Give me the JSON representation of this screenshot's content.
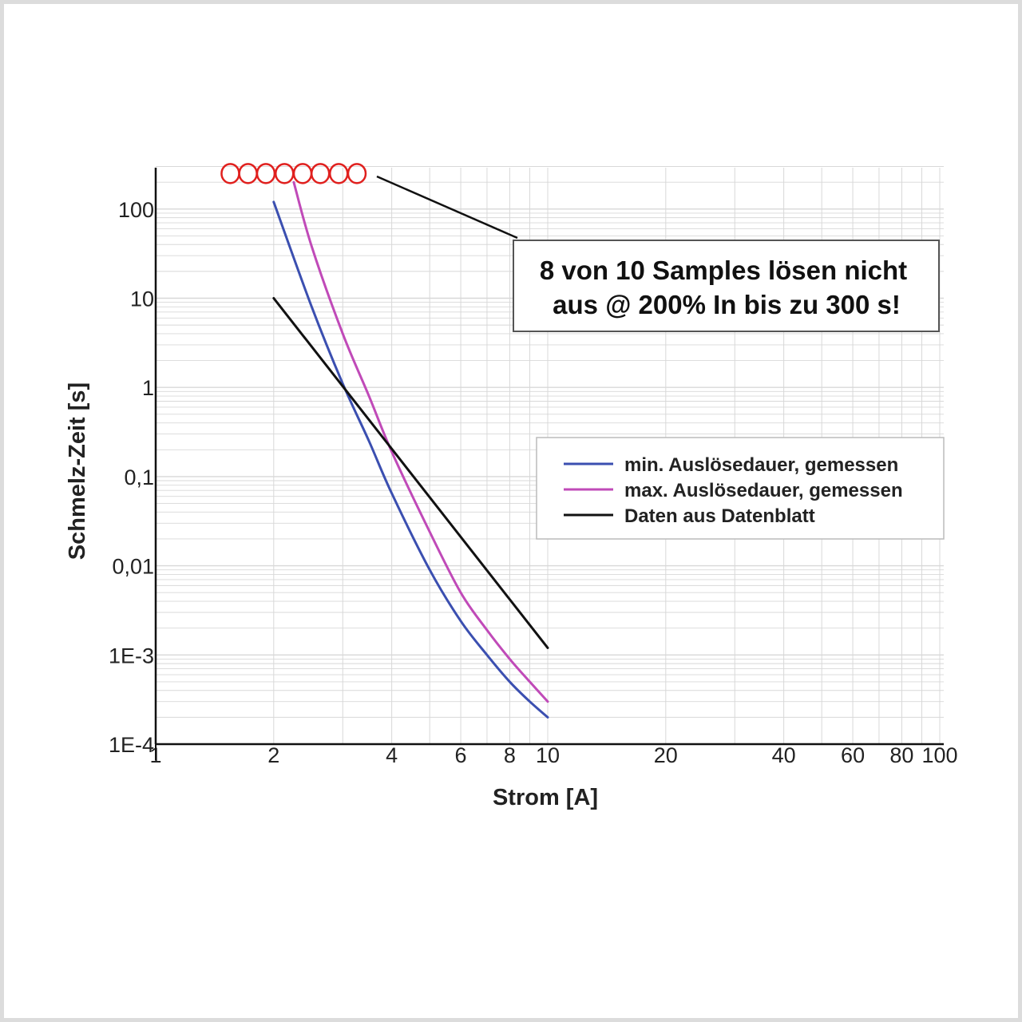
{
  "colors": {
    "min_series": "#3b4fb0",
    "max_series": "#c04ab8",
    "datasheet_series": "#111111",
    "marker": "#e0201e",
    "grid": "#d8d8d8"
  },
  "chart_data": {
    "type": "line",
    "x_scale": "log",
    "y_scale": "log",
    "xlabel": "Strom [A]",
    "ylabel": "Schmelz-Zeit [s]",
    "xlim": [
      1,
      100
    ],
    "ylim": [
      0.0001,
      300
    ],
    "x_tick_labels": [
      {
        "value": 1,
        "label": "1"
      },
      {
        "value": 2,
        "label": "2"
      },
      {
        "value": 4,
        "label": "4"
      },
      {
        "value": 6,
        "label": "6"
      },
      {
        "value": 8,
        "label": "8"
      },
      {
        "value": 10,
        "label": "10"
      },
      {
        "value": 20,
        "label": "20"
      },
      {
        "value": 40,
        "label": "40"
      },
      {
        "value": 60,
        "label": "60"
      },
      {
        "value": 80,
        "label": "80"
      },
      {
        "value": 100,
        "label": "100"
      }
    ],
    "y_tick_labels": [
      {
        "value": 100,
        "label": "100"
      },
      {
        "value": 10,
        "label": "10"
      },
      {
        "value": 1,
        "label": "1"
      },
      {
        "value": 0.1,
        "label": "0,1"
      },
      {
        "value": 0.01,
        "label": "0,01"
      },
      {
        "value": 0.001,
        "label": "1E-3"
      },
      {
        "value": 0.0001,
        "label": "1E-4"
      }
    ],
    "series": [
      {
        "name": "min. Auslösedauer, gemessen",
        "color_key": "min_series",
        "x": [
          2.0,
          2.5,
          3.0,
          3.5,
          4.0,
          5.0,
          6.0,
          7.0,
          8.0,
          9.0,
          10.0
        ],
        "y": [
          120,
          8,
          1.1,
          0.25,
          0.065,
          0.009,
          0.0024,
          0.001,
          0.0005,
          0.0003,
          0.0002
        ]
      },
      {
        "name": "max. Auslösedauer, gemessen",
        "color_key": "max_series",
        "x": [
          2.25,
          2.5,
          3.0,
          3.5,
          4.0,
          5.0,
          6.0,
          7.0,
          8.0,
          9.0,
          10.0
        ],
        "y": [
          200,
          38,
          4.0,
          0.8,
          0.19,
          0.024,
          0.005,
          0.0019,
          0.0009,
          0.0005,
          0.0003
        ]
      },
      {
        "name": "Daten aus Datenblatt",
        "color_key": "datasheet_series",
        "x": [
          2.0,
          10.0
        ],
        "y": [
          10,
          0.0012
        ]
      }
    ],
    "markers": {
      "description": "non-tripping samples",
      "y": 250,
      "x": [
        1.55,
        1.72,
        1.91,
        2.13,
        2.37,
        2.63,
        2.93,
        3.26
      ]
    },
    "annotation": {
      "line1": "8 von 10 Samples lösen nicht",
      "line2": "aus @ 200% In bis zu 300 s!"
    },
    "legend_position": "right",
    "grid": true
  }
}
